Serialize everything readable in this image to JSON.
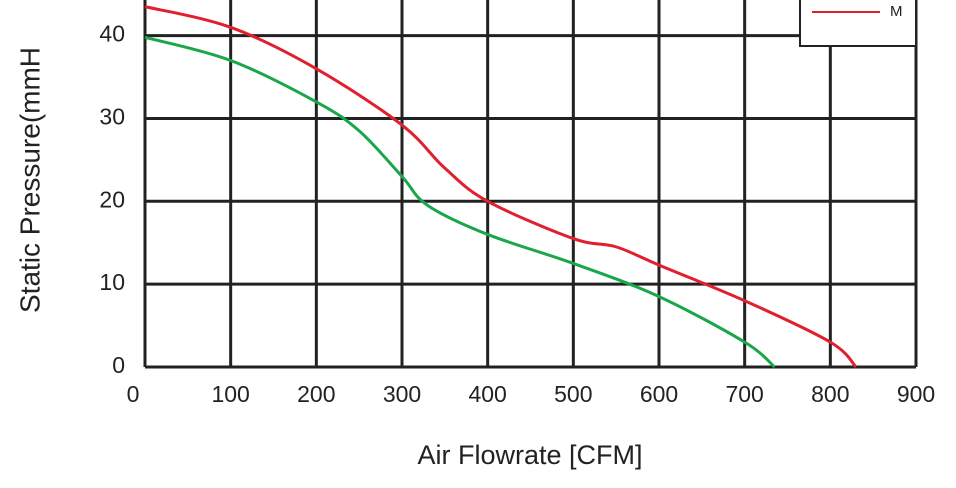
{
  "chart_data": {
    "type": "line",
    "x_label": "Air  Flowrate   [CFM]",
    "y_label": "Static Pressure(mmH",
    "xlim": [
      0,
      900
    ],
    "xticks": [
      0,
      100,
      200,
      300,
      400,
      500,
      600,
      700,
      800,
      900
    ],
    "ylim": [
      0,
      44.3
    ],
    "yticks": [
      0,
      10,
      20,
      30,
      40
    ],
    "grid": true,
    "legend": "upper right",
    "series": [
      {
        "color": "#1aa64a",
        "x": [
          0,
          100,
          200,
          250,
          300,
          330,
          400,
          500,
          600,
          700,
          735
        ],
        "values": [
          39.8,
          37,
          32,
          28.5,
          23,
          19.5,
          16,
          12.5,
          8.5,
          3,
          0
        ]
      },
      {
        "name": "M",
        "color": "#e0202e",
        "x": [
          0,
          100,
          200,
          300,
          350,
          400,
          500,
          550,
          600,
          700,
          800,
          830
        ],
        "values": [
          43.5,
          41,
          36,
          29.2,
          24,
          20,
          15.5,
          14.5,
          12.3,
          8,
          3,
          0
        ]
      }
    ]
  }
}
